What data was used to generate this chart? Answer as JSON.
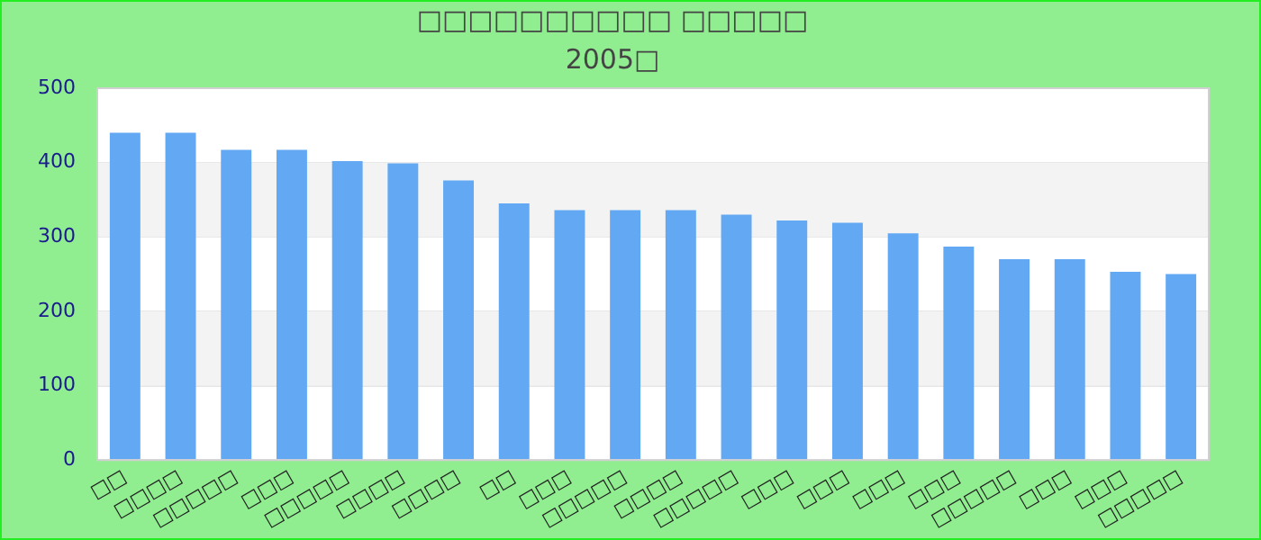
{
  "chart_data": {
    "type": "bar",
    "title": "□□□□□□□□□□ □□□□□",
    "subtitle": "2005□",
    "categories": [
      "□□",
      "□□□□",
      "□□□□□",
      "□□□",
      "□□□□□",
      "□□□□",
      "□□□□",
      "□□",
      "□□□",
      "□□□□□",
      "□□□□",
      "□□□□□",
      "□□□",
      "□□□",
      "□□□",
      "□□□",
      "□□□□□",
      "□□□",
      "□□□",
      "□□□□□"
    ],
    "values": [
      440,
      440,
      417,
      417,
      402,
      399,
      376,
      345,
      336,
      336,
      336,
      330,
      322,
      319,
      305,
      287,
      270,
      270,
      253,
      250
    ],
    "color": "#62a8f3",
    "ylim": [
      0,
      500
    ],
    "yticks": [
      0,
      100,
      200,
      300,
      400,
      500
    ],
    "grid": "y",
    "legend": false
  }
}
